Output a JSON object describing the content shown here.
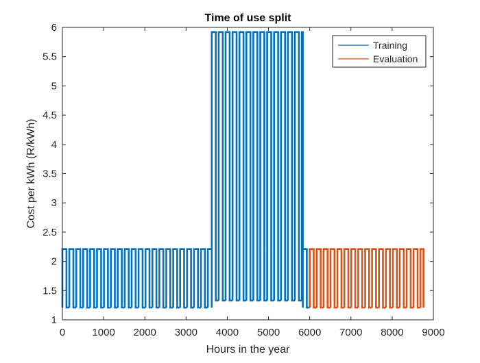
{
  "chart_data": {
    "type": "line",
    "title": "Time of use split",
    "xlabel": "Hours in the year",
    "ylabel": "Cost per kWh (R/kWh)",
    "xlim": [
      0,
      9000
    ],
    "ylim": [
      1,
      6
    ],
    "xticks": [
      0,
      1000,
      2000,
      3000,
      4000,
      5000,
      6000,
      7000,
      8000,
      9000
    ],
    "yticks": [
      1,
      1.5,
      2,
      2.5,
      3,
      3.5,
      4,
      4.5,
      5,
      5.5,
      6
    ],
    "grid": false,
    "legend_position": "top-right",
    "period_hours": 168,
    "series": [
      {
        "name": "Training",
        "color": "#0072BD",
        "segments": [
          {
            "x_start": 0,
            "x_end": 3624,
            "peak": 2.21,
            "off_peak": 1.21
          },
          {
            "x_start": 3624,
            "x_end": 5832,
            "peak": 5.92,
            "off_peak": 1.33
          },
          {
            "x_start": 5832,
            "x_end": 6000,
            "peak": 2.21,
            "off_peak": 1.21
          }
        ]
      },
      {
        "name": "Evaluation",
        "color": "#D95319",
        "segments": [
          {
            "x_start": 6000,
            "x_end": 8760,
            "peak": 2.21,
            "off_peak": 1.21
          }
        ]
      }
    ]
  }
}
